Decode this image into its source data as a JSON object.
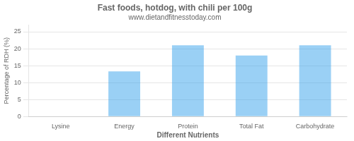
{
  "chart_data": {
    "type": "bar",
    "title": "Fast foods, hotdog, with chili per 100g",
    "subtitle": "www.dietandfitnesstoday.com",
    "xlabel": "Different Nutrients",
    "ylabel": "Percentage of RDH (%)",
    "categories": [
      "Lysine",
      "Energy",
      "Protein",
      "Total Fat",
      "Carbohydrate"
    ],
    "values": [
      0,
      13.3,
      21.0,
      18.0,
      21.0
    ],
    "ylim": [
      0,
      27
    ],
    "yticks": [
      0,
      5,
      10,
      15,
      20,
      25
    ],
    "grid": true
  }
}
